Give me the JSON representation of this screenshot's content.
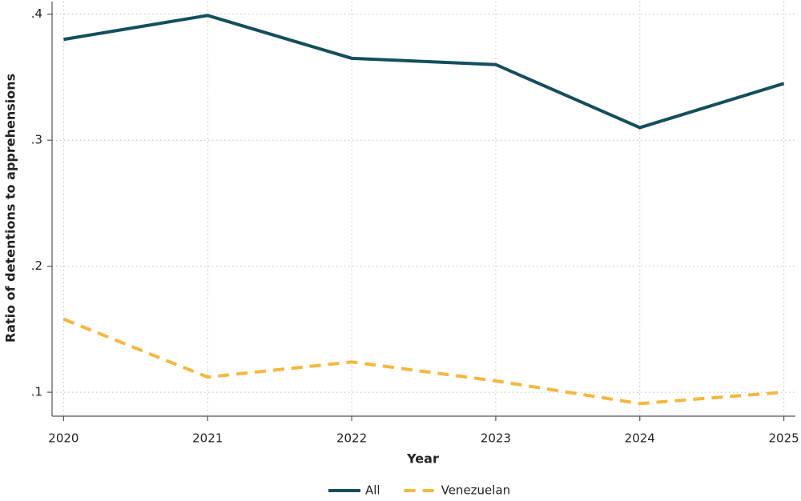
{
  "chart_data": {
    "type": "line",
    "x_label": "Year",
    "y_label": "Ratio of detentions to apprehensions",
    "x": [
      2020,
      2021,
      2022,
      2023,
      2024,
      2025
    ],
    "series": [
      {
        "name": "All",
        "color": "#134f5c",
        "dash": "solid",
        "values": [
          0.38,
          0.399,
          0.365,
          0.36,
          0.31,
          0.345
        ]
      },
      {
        "name": "Venezuelan",
        "color": "#f6b73c",
        "dash": "dashed",
        "values": [
          0.158,
          0.112,
          0.124,
          0.109,
          0.091,
          0.1
        ]
      }
    ],
    "xlim": [
      2019.92,
      2025.08
    ],
    "ylim": [
      0.081,
      0.41
    ],
    "xticks": [
      2020,
      2021,
      2022,
      2023,
      2024,
      2025
    ],
    "yticks": [
      {
        "value": 0.1,
        "label": ".1"
      },
      {
        "value": 0.2,
        "label": ".2"
      },
      {
        "value": 0.3,
        "label": ".3"
      },
      {
        "value": 0.4,
        "label": ".4"
      }
    ],
    "grid": true,
    "legend": "bottom"
  }
}
